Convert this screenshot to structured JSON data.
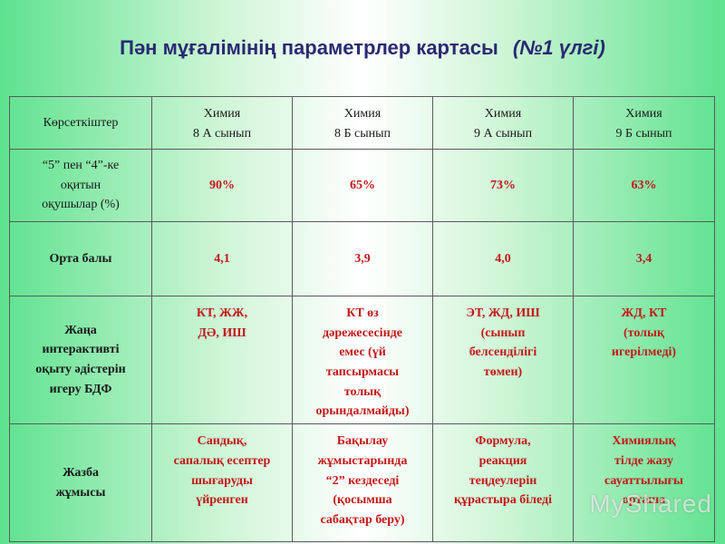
{
  "title": {
    "main": "Пән мұғалімінің параметрлер картасы",
    "suffix": "(№1 үлгі)"
  },
  "table": {
    "header": {
      "label": "Көрсеткіштер",
      "columns": [
        {
          "subject": "Химия",
          "class": "8 А сынып"
        },
        {
          "subject": "Химия",
          "class": "8 Б сынып"
        },
        {
          "subject": "Химия",
          "class": "9 А сынып"
        },
        {
          "subject": "Химия",
          "class": "9 Б сынып"
        }
      ]
    },
    "rows": [
      {
        "label_lines": [
          "“5” пен “4”-ке",
          "оқитын",
          "оқушылар (%)"
        ],
        "cells": [
          [
            "90%"
          ],
          [
            "65%"
          ],
          [
            "73%"
          ],
          [
            "63%"
          ]
        ]
      },
      {
        "label_lines": [
          "Орта балы"
        ],
        "cells": [
          [
            "4,1"
          ],
          [
            "3,9"
          ],
          [
            "4,0"
          ],
          [
            "3,4"
          ]
        ]
      },
      {
        "label_lines": [
          "Жаңа",
          "интерактивті",
          "оқыту әдістерін",
          "игеру БДФ"
        ],
        "cells": [
          [
            "КТ, ЖЖ,",
            "ДӘ, ИШ"
          ],
          [
            "КТ өз",
            "дәрежесесінде",
            "емес (үй",
            "тапсырмасы",
            "толық",
            "орындалмайды)"
          ],
          [
            "ЭТ, ЖД, ИШ",
            "(сынып",
            "белсенділігі",
            "төмен)"
          ],
          [
            "ЖД, КТ",
            "(толық",
            "игерілмеді)"
          ]
        ]
      },
      {
        "label_lines": [
          "Жазба",
          "жұмысы"
        ],
        "cells": [
          [
            "Сандық,",
            "сапалық есептер",
            "шығаруды",
            "үйренген"
          ],
          [
            "Бақылау",
            "жұмыстарында",
            "“2” кездеседі",
            "(қосымша",
            "сабақтар беру)"
          ],
          [
            "Формула,",
            "реакция",
            "теңдеулерін",
            "құрастыра біледі"
          ],
          [
            "Химиялық",
            "тілде жазу",
            "сауаттылығы",
            "орташа"
          ]
        ]
      }
    ]
  },
  "watermark": "MyShared"
}
